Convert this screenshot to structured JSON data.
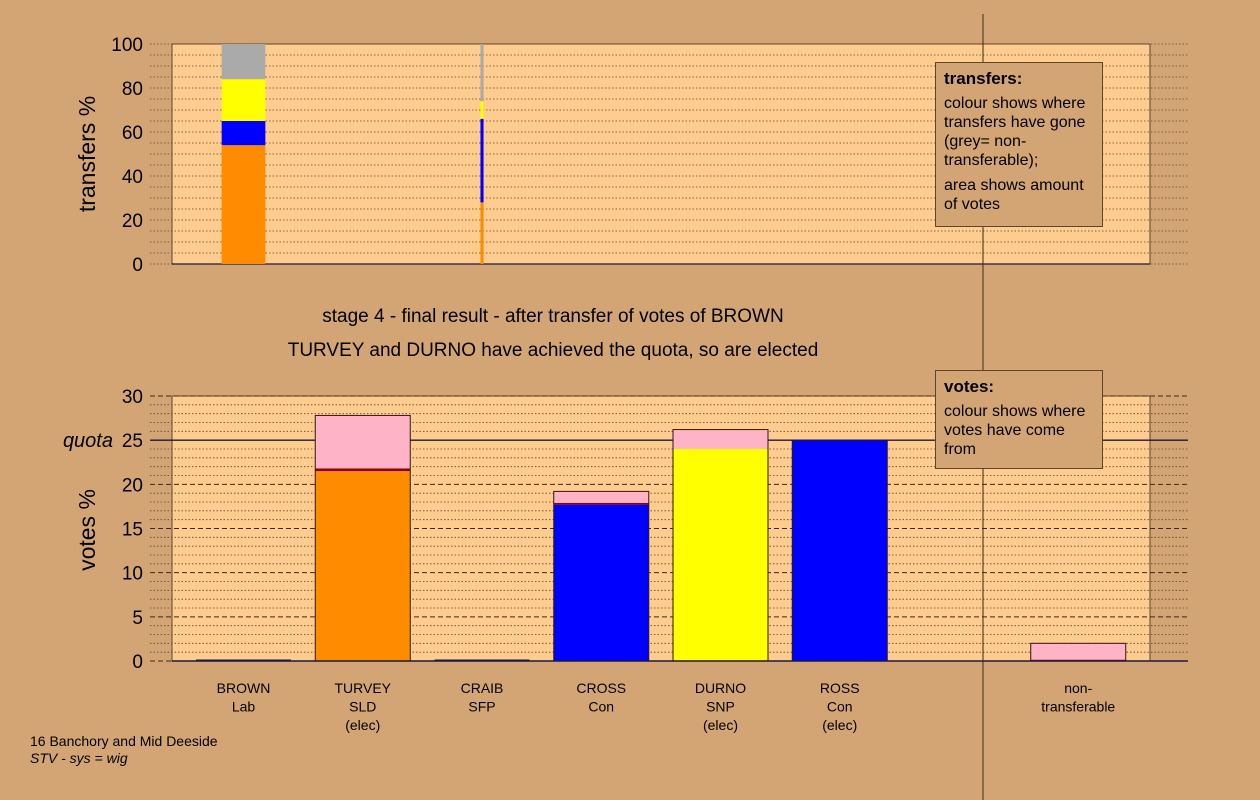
{
  "colors": {
    "background": "#d4a574",
    "plot_bg": "#ffcc8f",
    "SLD": "#ff8c00",
    "Con": "#0000ff",
    "SNP": "#ffff00",
    "non_transferable": "#aaaaaa",
    "transfers_in": "#ffb3c6",
    "Lab": "#8b0000"
  },
  "titles": {
    "line1": "stage 4 - final result - after transfer of votes of BROWN",
    "line2": "TURVEY and DURNO have achieved the quota, so are elected"
  },
  "legend_transfers": {
    "heading": "transfers:",
    "text1": "colour shows where transfers have gone (grey= non-transferable);",
    "text2": "area shows amount of votes"
  },
  "legend_votes": {
    "heading": "votes:",
    "text1": "colour shows where votes have come from"
  },
  "footer": {
    "line1": "16 Banchory and Mid Deeside",
    "line2": "STV - sys = wig"
  },
  "chart_data": [
    {
      "type": "bar",
      "ylabel": "transfers %",
      "ylim": [
        0,
        100
      ],
      "yticks": [
        0,
        20,
        40,
        60,
        80,
        100
      ],
      "grid": "dotted",
      "bars": [
        {
          "candidate": "BROWN",
          "width_scale": 1.0,
          "segments": [
            {
              "party": "SLD",
              "from": 0,
              "to": 54
            },
            {
              "party": "Con",
              "from": 54,
              "to": 65
            },
            {
              "party": "SNP",
              "from": 65,
              "to": 84
            },
            {
              "party": "non_transferable",
              "from": 84,
              "to": 100
            }
          ]
        },
        {
          "candidate": "CRAIB",
          "width_scale": 0.07,
          "segments": [
            {
              "party": "SLD",
              "from": 0,
              "to": 28
            },
            {
              "party": "Con",
              "from": 28,
              "to": 66
            },
            {
              "party": "SNP",
              "from": 66,
              "to": 74
            },
            {
              "party": "non_transferable",
              "from": 74,
              "to": 100
            }
          ]
        }
      ]
    },
    {
      "type": "bar",
      "ylabel": "votes %",
      "ylim": [
        0,
        30
      ],
      "yticks": [
        0,
        5,
        10,
        15,
        20,
        25,
        30
      ],
      "quota_label": "quota",
      "quota": 25,
      "grid": "dashed",
      "categories": [
        {
          "name": "BROWN",
          "party": "Lab",
          "status": ""
        },
        {
          "name": "TURVEY",
          "party": "SLD",
          "status": "(elec)"
        },
        {
          "name": "CRAIB",
          "party": "SFP",
          "status": ""
        },
        {
          "name": "CROSS",
          "party": "Con",
          "status": ""
        },
        {
          "name": "DURNO",
          "party": "SNP",
          "status": "(elec)"
        },
        {
          "name": "ROSS",
          "party": "Con",
          "status": "(elec)"
        },
        {
          "name": "",
          "party": "",
          "status": ""
        },
        {
          "name": "non-",
          "party": "transferable",
          "status": ""
        }
      ],
      "bars": [
        {
          "candidate": "BROWN",
          "segments": []
        },
        {
          "candidate": "TURVEY",
          "segments": [
            {
              "party": "SLD",
              "from": 0,
              "to": 21.5
            },
            {
              "party": "Lab",
              "from": 21.5,
              "to": 21.8
            },
            {
              "party": "transfers_in",
              "from": 21.8,
              "to": 27.8
            }
          ]
        },
        {
          "candidate": "CRAIB",
          "segments": []
        },
        {
          "candidate": "CROSS",
          "segments": [
            {
              "party": "Con",
              "from": 0,
              "to": 17.7
            },
            {
              "party": "Lab",
              "from": 17.7,
              "to": 17.9
            },
            {
              "party": "transfers_in",
              "from": 17.9,
              "to": 19.2
            }
          ]
        },
        {
          "candidate": "DURNO",
          "segments": [
            {
              "party": "SNP",
              "from": 0,
              "to": 24.0
            },
            {
              "party": "transfers_in",
              "from": 24.0,
              "to": 26.2
            }
          ]
        },
        {
          "candidate": "ROSS",
          "segments": [
            {
              "party": "Con",
              "from": 0,
              "to": 25.0
            }
          ]
        },
        {
          "candidate": "",
          "segments": []
        },
        {
          "candidate": "non-transferable",
          "segments": [
            {
              "party": "Lab",
              "from": 0,
              "to": 0.15
            },
            {
              "party": "transfers_in",
              "from": 0.15,
              "to": 2.0
            }
          ]
        }
      ]
    }
  ]
}
